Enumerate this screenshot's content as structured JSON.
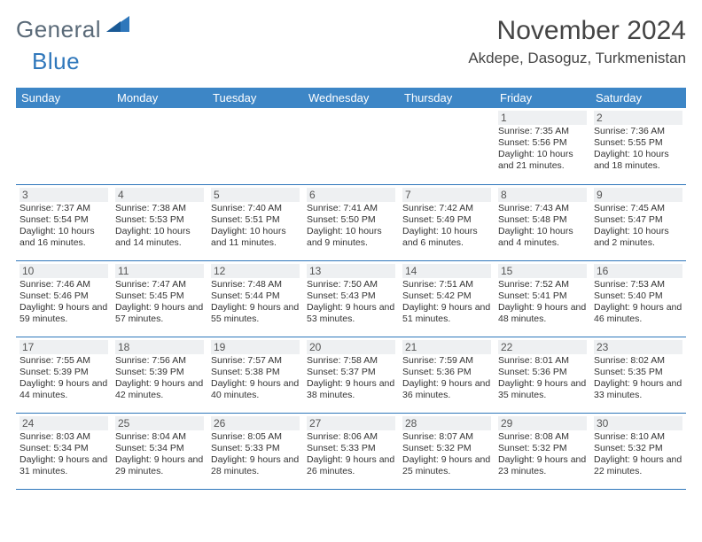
{
  "brand": {
    "general": "General",
    "blue": "Blue"
  },
  "title": "November 2024",
  "location": "Akdepe, Dasoguz, Turkmenistan",
  "colors": {
    "header_bg": "#3d86c6",
    "header_text": "#ffffff",
    "divider": "#2f77bb",
    "daynum_bg": "#eef0f2",
    "text": "#333333",
    "brand_gray": "#5a6a78",
    "brand_blue": "#2f77bb"
  },
  "weekdays": [
    "Sunday",
    "Monday",
    "Tuesday",
    "Wednesday",
    "Thursday",
    "Friday",
    "Saturday"
  ],
  "weeks": [
    [
      null,
      null,
      null,
      null,
      null,
      {
        "n": "1",
        "sunrise": "Sunrise: 7:35 AM",
        "sunset": "Sunset: 5:56 PM",
        "day": "Daylight: 10 hours and 21 minutes."
      },
      {
        "n": "2",
        "sunrise": "Sunrise: 7:36 AM",
        "sunset": "Sunset: 5:55 PM",
        "day": "Daylight: 10 hours and 18 minutes."
      }
    ],
    [
      {
        "n": "3",
        "sunrise": "Sunrise: 7:37 AM",
        "sunset": "Sunset: 5:54 PM",
        "day": "Daylight: 10 hours and 16 minutes."
      },
      {
        "n": "4",
        "sunrise": "Sunrise: 7:38 AM",
        "sunset": "Sunset: 5:53 PM",
        "day": "Daylight: 10 hours and 14 minutes."
      },
      {
        "n": "5",
        "sunrise": "Sunrise: 7:40 AM",
        "sunset": "Sunset: 5:51 PM",
        "day": "Daylight: 10 hours and 11 minutes."
      },
      {
        "n": "6",
        "sunrise": "Sunrise: 7:41 AM",
        "sunset": "Sunset: 5:50 PM",
        "day": "Daylight: 10 hours and 9 minutes."
      },
      {
        "n": "7",
        "sunrise": "Sunrise: 7:42 AM",
        "sunset": "Sunset: 5:49 PM",
        "day": "Daylight: 10 hours and 6 minutes."
      },
      {
        "n": "8",
        "sunrise": "Sunrise: 7:43 AM",
        "sunset": "Sunset: 5:48 PM",
        "day": "Daylight: 10 hours and 4 minutes."
      },
      {
        "n": "9",
        "sunrise": "Sunrise: 7:45 AM",
        "sunset": "Sunset: 5:47 PM",
        "day": "Daylight: 10 hours and 2 minutes."
      }
    ],
    [
      {
        "n": "10",
        "sunrise": "Sunrise: 7:46 AM",
        "sunset": "Sunset: 5:46 PM",
        "day": "Daylight: 9 hours and 59 minutes."
      },
      {
        "n": "11",
        "sunrise": "Sunrise: 7:47 AM",
        "sunset": "Sunset: 5:45 PM",
        "day": "Daylight: 9 hours and 57 minutes."
      },
      {
        "n": "12",
        "sunrise": "Sunrise: 7:48 AM",
        "sunset": "Sunset: 5:44 PM",
        "day": "Daylight: 9 hours and 55 minutes."
      },
      {
        "n": "13",
        "sunrise": "Sunrise: 7:50 AM",
        "sunset": "Sunset: 5:43 PM",
        "day": "Daylight: 9 hours and 53 minutes."
      },
      {
        "n": "14",
        "sunrise": "Sunrise: 7:51 AM",
        "sunset": "Sunset: 5:42 PM",
        "day": "Daylight: 9 hours and 51 minutes."
      },
      {
        "n": "15",
        "sunrise": "Sunrise: 7:52 AM",
        "sunset": "Sunset: 5:41 PM",
        "day": "Daylight: 9 hours and 48 minutes."
      },
      {
        "n": "16",
        "sunrise": "Sunrise: 7:53 AM",
        "sunset": "Sunset: 5:40 PM",
        "day": "Daylight: 9 hours and 46 minutes."
      }
    ],
    [
      {
        "n": "17",
        "sunrise": "Sunrise: 7:55 AM",
        "sunset": "Sunset: 5:39 PM",
        "day": "Daylight: 9 hours and 44 minutes."
      },
      {
        "n": "18",
        "sunrise": "Sunrise: 7:56 AM",
        "sunset": "Sunset: 5:39 PM",
        "day": "Daylight: 9 hours and 42 minutes."
      },
      {
        "n": "19",
        "sunrise": "Sunrise: 7:57 AM",
        "sunset": "Sunset: 5:38 PM",
        "day": "Daylight: 9 hours and 40 minutes."
      },
      {
        "n": "20",
        "sunrise": "Sunrise: 7:58 AM",
        "sunset": "Sunset: 5:37 PM",
        "day": "Daylight: 9 hours and 38 minutes."
      },
      {
        "n": "21",
        "sunrise": "Sunrise: 7:59 AM",
        "sunset": "Sunset: 5:36 PM",
        "day": "Daylight: 9 hours and 36 minutes."
      },
      {
        "n": "22",
        "sunrise": "Sunrise: 8:01 AM",
        "sunset": "Sunset: 5:36 PM",
        "day": "Daylight: 9 hours and 35 minutes."
      },
      {
        "n": "23",
        "sunrise": "Sunrise: 8:02 AM",
        "sunset": "Sunset: 5:35 PM",
        "day": "Daylight: 9 hours and 33 minutes."
      }
    ],
    [
      {
        "n": "24",
        "sunrise": "Sunrise: 8:03 AM",
        "sunset": "Sunset: 5:34 PM",
        "day": "Daylight: 9 hours and 31 minutes."
      },
      {
        "n": "25",
        "sunrise": "Sunrise: 8:04 AM",
        "sunset": "Sunset: 5:34 PM",
        "day": "Daylight: 9 hours and 29 minutes."
      },
      {
        "n": "26",
        "sunrise": "Sunrise: 8:05 AM",
        "sunset": "Sunset: 5:33 PM",
        "day": "Daylight: 9 hours and 28 minutes."
      },
      {
        "n": "27",
        "sunrise": "Sunrise: 8:06 AM",
        "sunset": "Sunset: 5:33 PM",
        "day": "Daylight: 9 hours and 26 minutes."
      },
      {
        "n": "28",
        "sunrise": "Sunrise: 8:07 AM",
        "sunset": "Sunset: 5:32 PM",
        "day": "Daylight: 9 hours and 25 minutes."
      },
      {
        "n": "29",
        "sunrise": "Sunrise: 8:08 AM",
        "sunset": "Sunset: 5:32 PM",
        "day": "Daylight: 9 hours and 23 minutes."
      },
      {
        "n": "30",
        "sunrise": "Sunrise: 8:10 AM",
        "sunset": "Sunset: 5:32 PM",
        "day": "Daylight: 9 hours and 22 minutes."
      }
    ]
  ]
}
